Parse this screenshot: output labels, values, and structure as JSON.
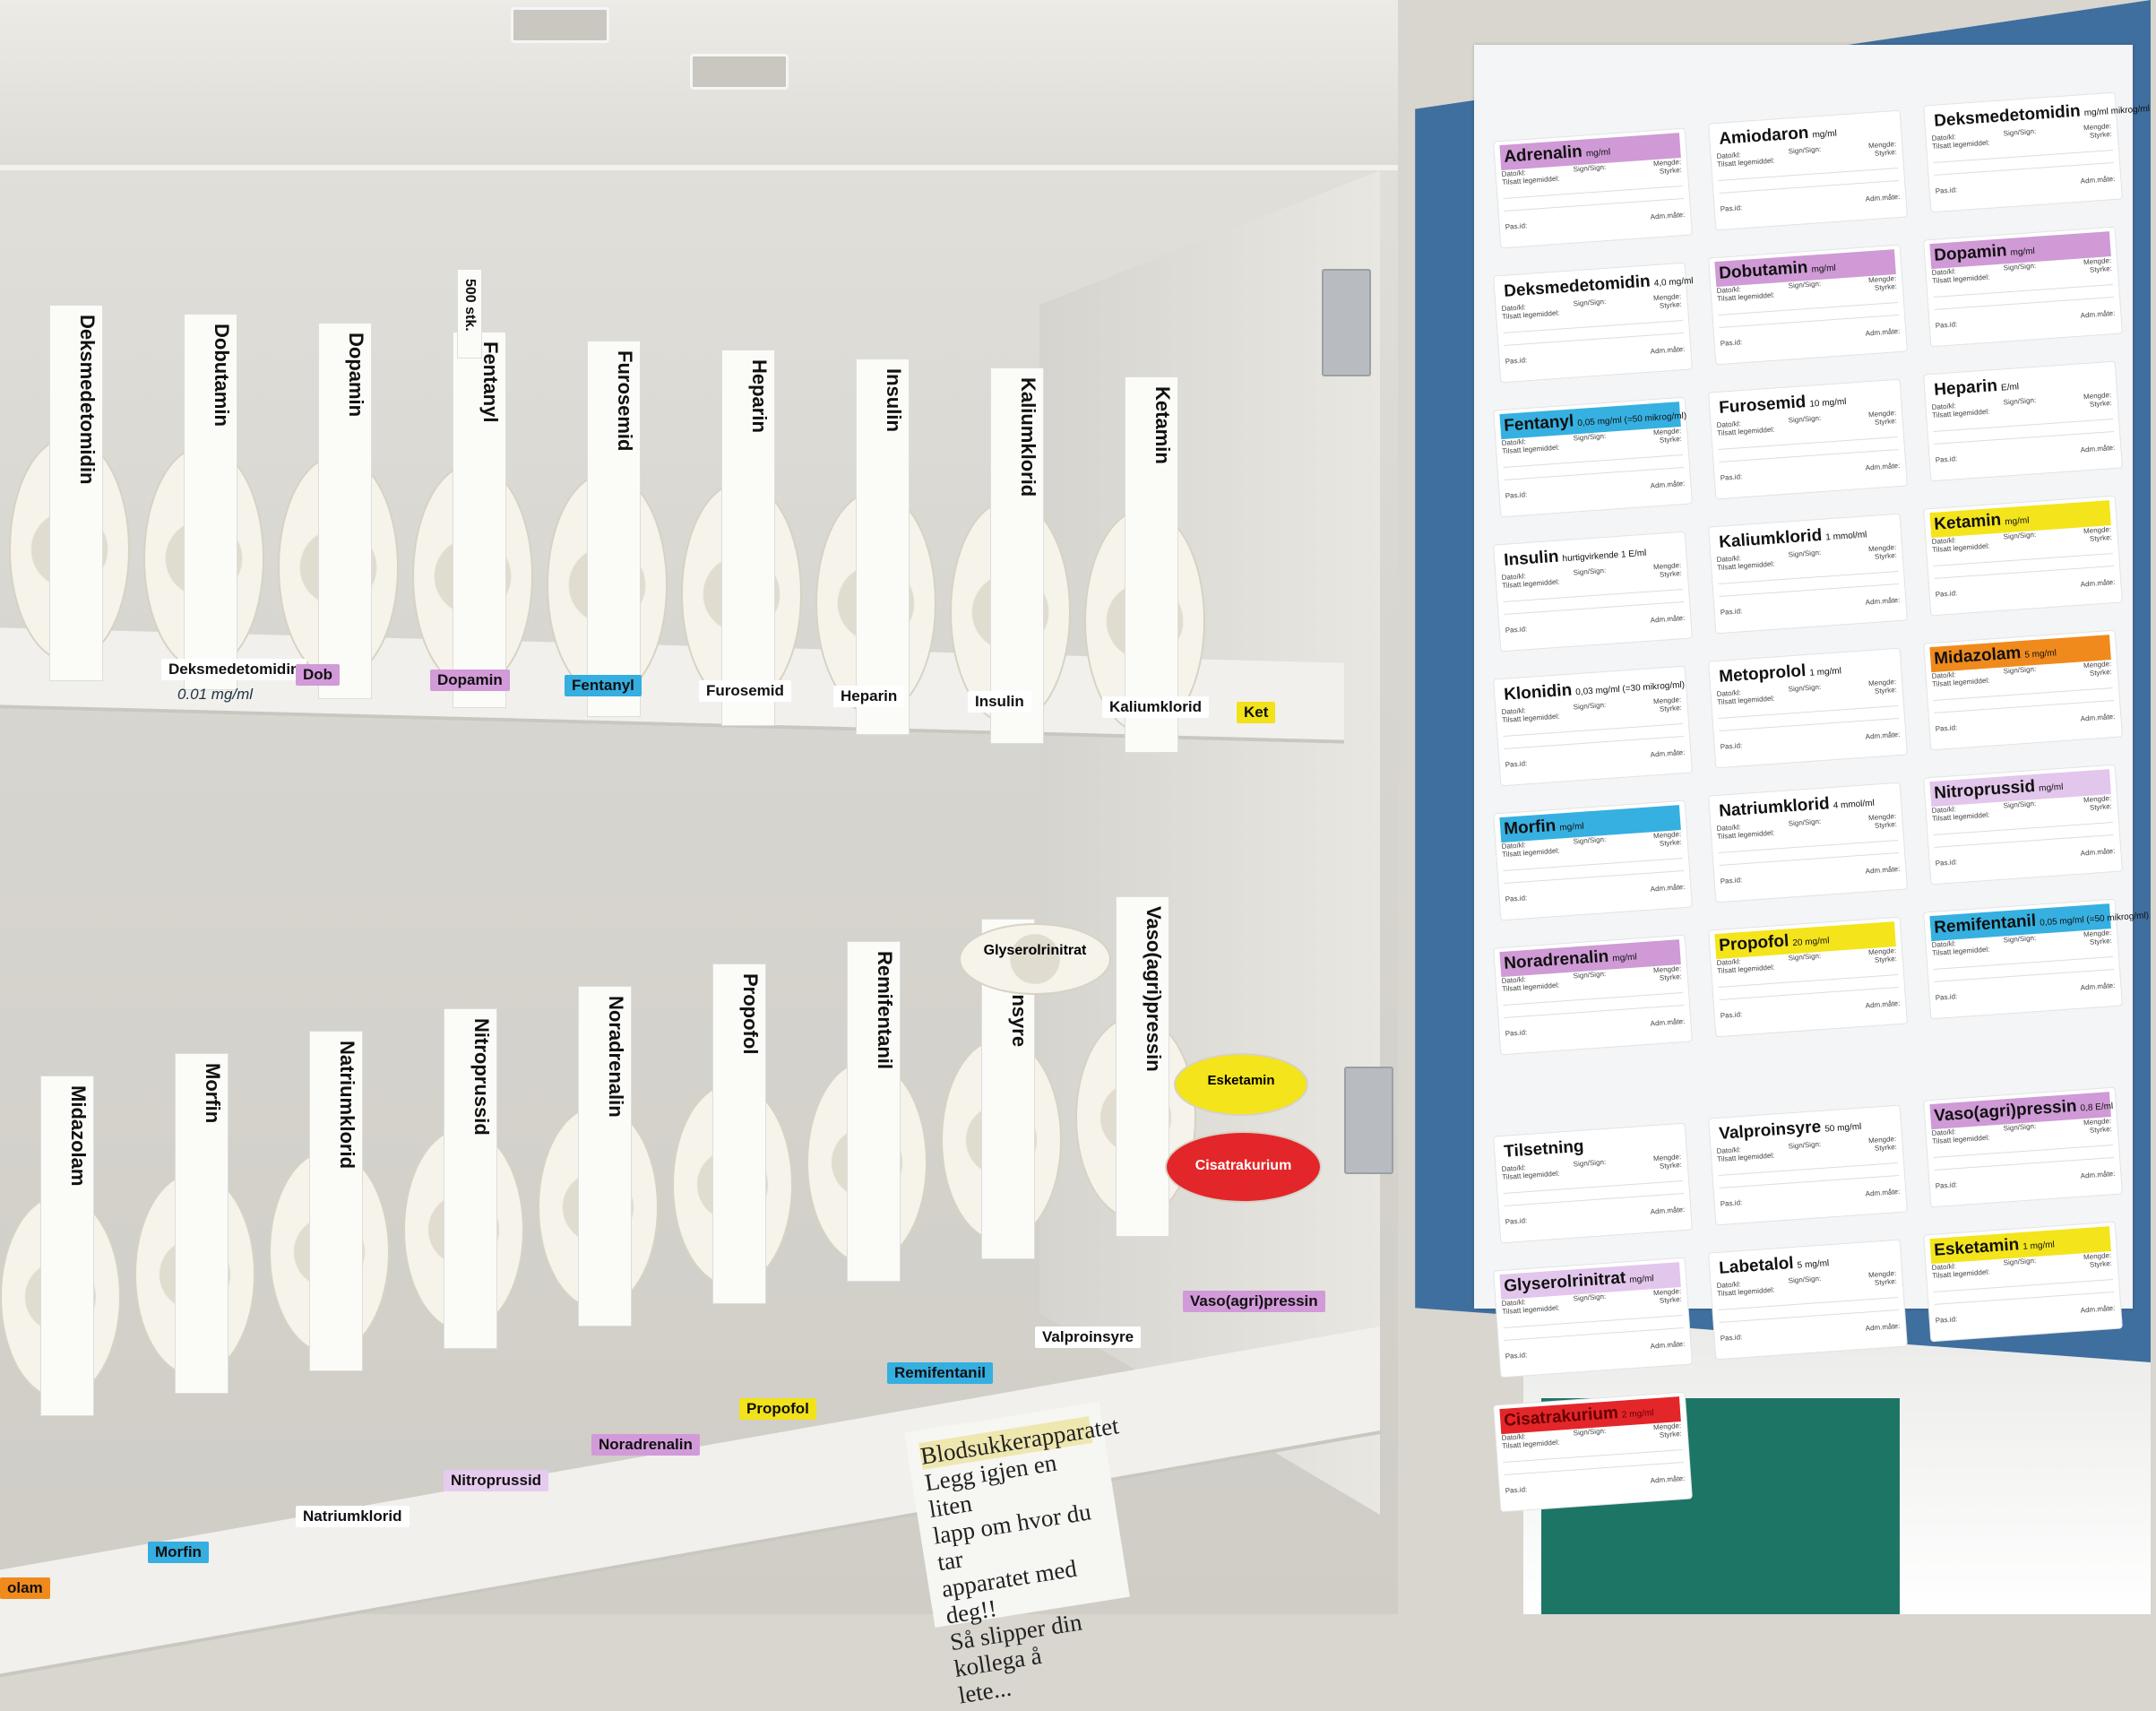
{
  "top_shelf_labels": [
    {
      "text": "Deksmedetomidin",
      "color": "#ffffff",
      "note": "0.01 mg/ml"
    },
    {
      "text": "Dob",
      "color": "#d29ad8"
    },
    {
      "text": "Dopamin",
      "color": "#d29ad8"
    },
    {
      "text": "Fentanyl",
      "color": "#35aee0"
    },
    {
      "text": "Furosemid",
      "color": "#ffffff"
    },
    {
      "text": "Heparin",
      "color": "#ffffff"
    },
    {
      "text": "Insulin",
      "color": "#ffffff"
    },
    {
      "text": "Kaliumklorid",
      "color": "#ffffff"
    },
    {
      "text": "Ket",
      "color": "#f2e21a"
    }
  ],
  "bottom_shelf_labels": [
    {
      "text": "olam",
      "color": "#f08a1c"
    },
    {
      "text": "Morfin",
      "color": "#35aee0"
    },
    {
      "text": "Natriumklorid",
      "color": "#ffffff"
    },
    {
      "text": "Nitroprussid",
      "color": "#e7cbee"
    },
    {
      "text": "Noradrenalin",
      "color": "#d29ad8"
    },
    {
      "text": "Propofol",
      "color": "#f2e21a"
    },
    {
      "text": "Remifentanil",
      "color": "#35aee0"
    },
    {
      "text": "Valproinsyre",
      "color": "#ffffff"
    },
    {
      "text": "Vaso(agri)pressin",
      "color": "#d29ad8"
    }
  ],
  "top_rolls": [
    "Deksmedetomidin",
    "Dobutamin",
    "Dopamin",
    "Fentanyl",
    "Furosemid",
    "Heparin",
    "Insulin",
    "Kaliumklorid",
    "Ketamin"
  ],
  "bottom_rolls": [
    "Midazolam",
    "Morfin",
    "Natriumklorid",
    "Nitroprussid",
    "Noradrenalin",
    "Propofol",
    "Remifentanil",
    "Valproinsyre",
    "Vaso(agri)pressin"
  ],
  "roll_texts": {
    "fentanyl_roll": "500 stk.",
    "glyserol_roll": "Glyserolrinitrat",
    "esketamin_roll": "Esketamin",
    "cisatrakurium_roll": "Cisatrakurium"
  },
  "door_sheet": {
    "field_labels": {
      "date": "Dato/kl:",
      "added": "Tilsatt legemiddel:",
      "sign": "Sign/Sign:",
      "strength": "Styrke:",
      "amount": "Mengde:",
      "patient": "Pas.id:",
      "admin": "Adm.måte:"
    },
    "labels": [
      {
        "name": "Adrenalin",
        "unit": "mg/ml",
        "color": "#cf9ad6"
      },
      {
        "name": "Amiodaron",
        "unit": "mg/ml",
        "color": ""
      },
      {
        "name": "Deksmedetomidin",
        "unit": "mg/ml mikrog/ml",
        "color": ""
      },
      {
        "name": "Deksmedetomidin",
        "unit": "4,0 mg/ml",
        "color": ""
      },
      {
        "name": "Dobutamin",
        "unit": "mg/ml",
        "color": "#cf9ad6"
      },
      {
        "name": "Dopamin",
        "unit": "mg/ml",
        "color": "#cf9ad6"
      },
      {
        "name": "Fentanyl",
        "unit": "0,05 mg/ml (=50 mikrog/ml)",
        "color": "#36b0e0"
      },
      {
        "name": "Furosemid",
        "unit": "10 mg/ml",
        "color": ""
      },
      {
        "name": "Heparin",
        "unit": "E/ml",
        "color": ""
      },
      {
        "name": "Insulin",
        "unit": "hurtigvirkende 1 E/ml",
        "color": ""
      },
      {
        "name": "Kaliumklorid",
        "unit": "1 mmol/ml",
        "color": ""
      },
      {
        "name": "Ketamin",
        "unit": "mg/ml",
        "color": "#f4e41c"
      },
      {
        "name": "Klonidin",
        "unit": "0,03 mg/ml (=30 mikrog/ml)",
        "color": ""
      },
      {
        "name": "Metoprolol",
        "unit": "1 mg/ml",
        "color": ""
      },
      {
        "name": "Midazolam",
        "unit": "5 mg/ml",
        "color": "#f08a1c"
      },
      {
        "name": "Morfin",
        "unit": "mg/ml",
        "color": "#36b0e0"
      },
      {
        "name": "Natriumklorid",
        "unit": "4 mmol/ml",
        "color": ""
      },
      {
        "name": "Nitroprussid",
        "unit": "mg/ml",
        "color": "#e3c6ec"
      },
      {
        "name": "Noradrenalin",
        "unit": "mg/ml",
        "color": "#cf9ad6"
      },
      {
        "name": "Propofol",
        "unit": "20 mg/ml",
        "color": "#f4e41c"
      },
      {
        "name": "Remifentanil",
        "unit": "0,05 mg/ml (=50 mikrog/ml)",
        "color": "#36b0e0"
      },
      {
        "name": "Tilsetning",
        "unit": "",
        "color": ""
      },
      {
        "name": "Valproinsyre",
        "unit": "50 mg/ml",
        "color": ""
      },
      {
        "name": "Vaso(agri)pressin",
        "unit": "0,8 E/ml",
        "color": "#cf9ad6"
      },
      {
        "name": "Glyserolrinitrat",
        "unit": "mg/ml",
        "color": "#e3c6ec"
      },
      {
        "name": "Labetalol",
        "unit": "5 mg/ml",
        "color": ""
      },
      {
        "name": "Esketamin",
        "unit": "1 mg/ml",
        "color": "#f4e41c"
      },
      {
        "name": "Cisatrakurium",
        "unit": "2 mg/ml",
        "color": "#e3262a"
      }
    ]
  },
  "note": {
    "title": "Blodsukkerapparatet",
    "lines": [
      "Legg igjen en liten",
      "lapp om hvor du tar",
      "apparatet med deg!!",
      "Så slipper din kollega å",
      "lete..."
    ]
  }
}
